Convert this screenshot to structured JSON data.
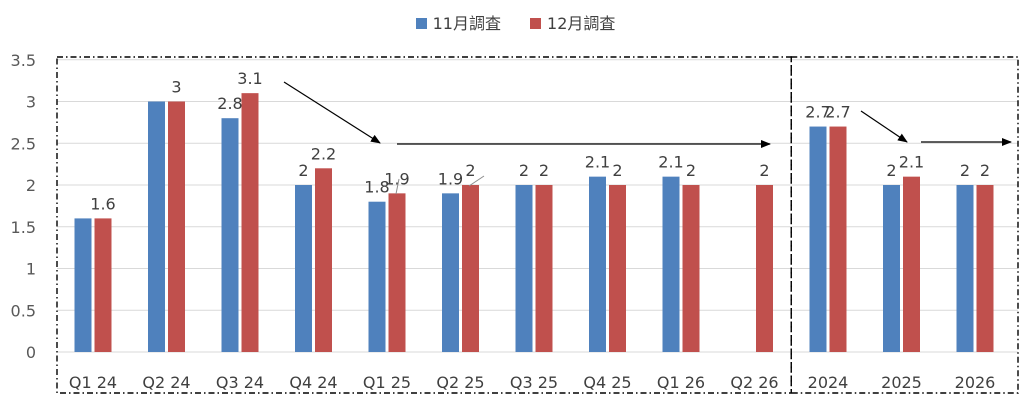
{
  "legend": {
    "series1": "11月調査",
    "series2": "12月調査"
  },
  "chart_data": {
    "type": "bar",
    "categories": [
      "Q1 24",
      "Q2 24",
      "Q3 24",
      "Q4 24",
      "Q1 25",
      "Q2 25",
      "Q3 25",
      "Q4 25",
      "Q1 26",
      "Q2 26",
      "2024",
      "2025",
      "2026"
    ],
    "series": [
      {
        "name": "11月調査",
        "color": "#4f81bd",
        "values": [
          1.6,
          3,
          2.8,
          2,
          1.8,
          1.9,
          2,
          2.1,
          2.1,
          null,
          2.7,
          2,
          2
        ]
      },
      {
        "name": "12月調査",
        "color": "#c0504d",
        "values": [
          1.6,
          3,
          3.1,
          2.2,
          1.9,
          2,
          2,
          2,
          2,
          2,
          2.7,
          2.1,
          2
        ]
      }
    ],
    "data_labels": [
      [
        "",
        "",
        "2.8",
        "2",
        "1.8",
        "1.9",
        "2",
        "2.1",
        "2.1",
        "",
        "2.7",
        "2",
        "2"
      ],
      [
        "1.6",
        "3",
        "3.1",
        "2.2",
        "1.9",
        "2",
        "2",
        "2",
        "2",
        "2",
        "2.7",
        "2.1",
        "2"
      ]
    ],
    "y_ticks": [
      "0",
      "0.5",
      "1",
      "1.5",
      "2",
      "2.5",
      "3",
      "3.5"
    ],
    "ylim": [
      0,
      3.5
    ],
    "grid": true,
    "legend_position": "top-center",
    "groups": [
      "quarterly",
      "annual"
    ],
    "title": "",
    "xlabel": "",
    "ylabel": ""
  }
}
